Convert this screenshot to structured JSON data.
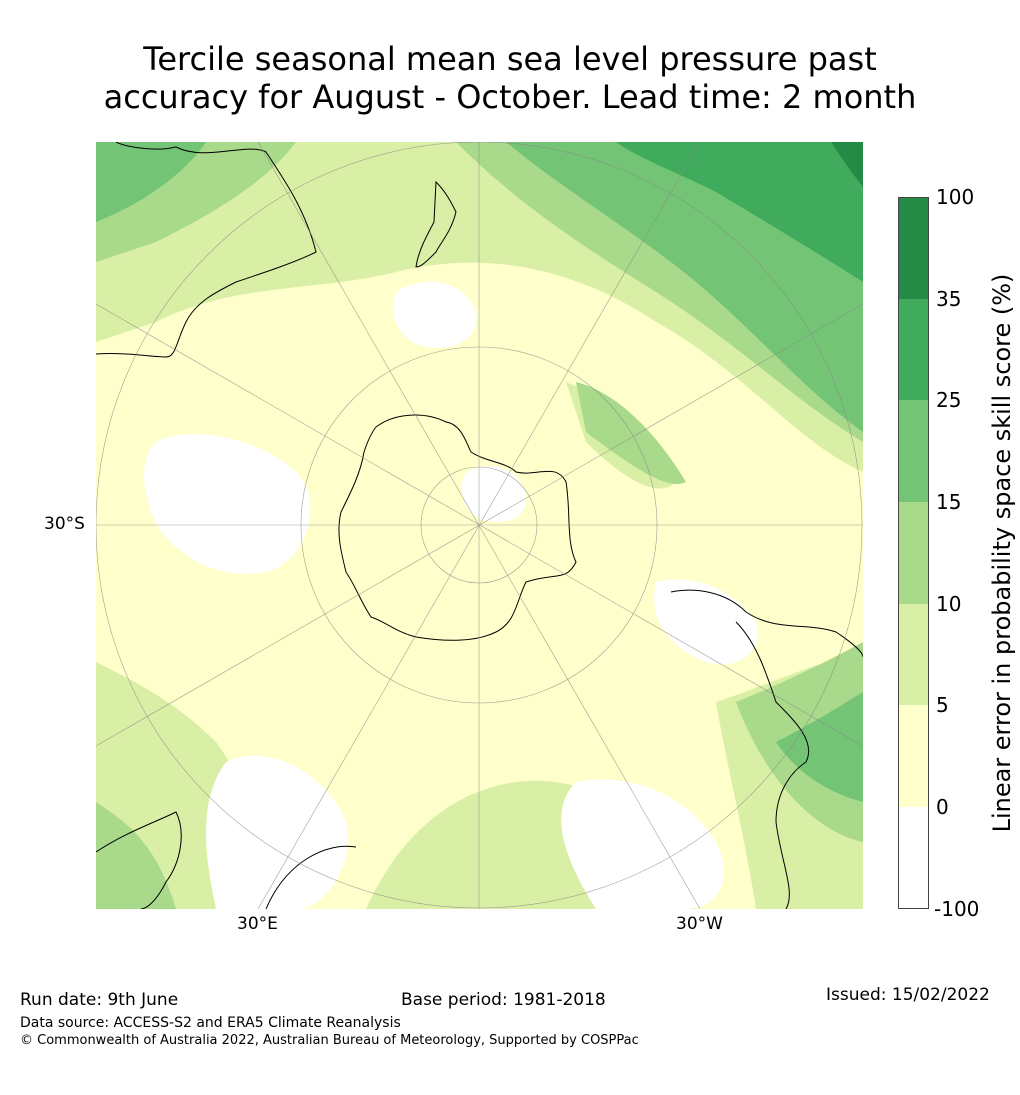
{
  "title": {
    "line1": "Tercile seasonal mean sea level pressure past",
    "line2": "accuracy for August - October. Lead time: 2 month"
  },
  "map": {
    "projection": "south polar stereographic",
    "lat_label": "30°S",
    "lon_labels": [
      "30°E",
      "30°W"
    ]
  },
  "colorbar": {
    "title": "Linear error in probability space skill score (%)",
    "ticks": [
      "100",
      "35",
      "25",
      "15",
      "10",
      "5",
      "0",
      "-100"
    ],
    "bins": [
      {
        "range": "35 to 100",
        "color": "#238b45"
      },
      {
        "range": "25 to 35",
        "color": "#41ab5d"
      },
      {
        "range": "15 to 25",
        "color": "#74c476"
      },
      {
        "range": "10 to 15",
        "color": "#a9d98a"
      },
      {
        "range": "5 to 10",
        "color": "#d9efa5"
      },
      {
        "range": "0 to 5",
        "color": "#ffffcc"
      },
      {
        "range": "-100 to 0",
        "color": "#ffffff"
      }
    ]
  },
  "footer": {
    "run_date": "Run date: 9th June",
    "base_period": "Base period: 1981-2018",
    "issued": "Issued: 15/02/2022",
    "data_source": "Data source: ACCESS-S2 and ERA5 Climate Reanalysis",
    "copyright": "© Commonwealth of Australia 2022, Australian Bureau of Meteorology, Supported by COSPPac"
  }
}
